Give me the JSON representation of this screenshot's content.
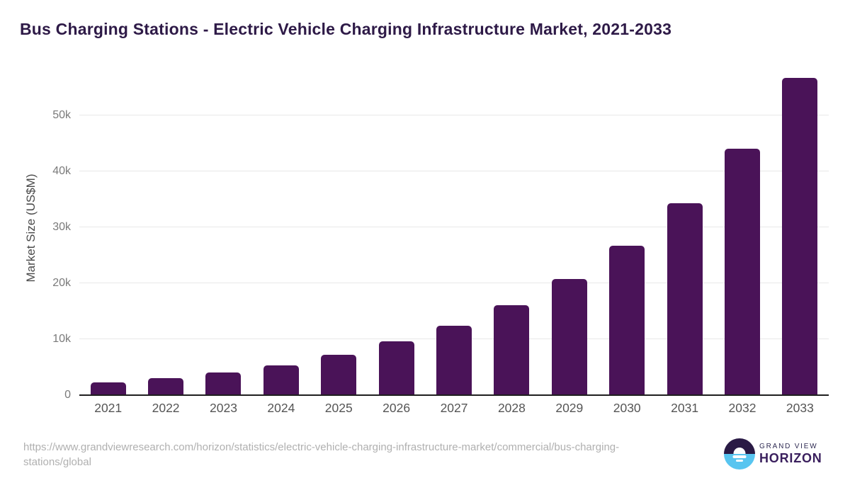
{
  "page": {
    "title": "Bus Charging Stations - Electric Vehicle Charging Infrastructure Market, 2021-2033"
  },
  "chart_data": {
    "type": "bar",
    "title": "Bus Charging Stations - Electric Vehicle Charging Infrastructure Market, 2021-2033",
    "categories": [
      "2021",
      "2022",
      "2023",
      "2024",
      "2025",
      "2026",
      "2027",
      "2028",
      "2029",
      "2030",
      "2031",
      "2032",
      "2033"
    ],
    "values": [
      2250,
      3030,
      4050,
      5320,
      7170,
      9660,
      12420,
      16120,
      20780,
      26750,
      34320,
      44030,
      56680
    ],
    "xlabel": "",
    "ylabel": "Market Size (US$M)",
    "ylim": [
      0,
      58000
    ],
    "yticks": [
      {
        "value": 0,
        "label": "0"
      },
      {
        "value": 10000,
        "label": "10k"
      },
      {
        "value": 20000,
        "label": "20k"
      },
      {
        "value": 30000,
        "label": "30k"
      },
      {
        "value": 40000,
        "label": "40k"
      },
      {
        "value": 50000,
        "label": "50k"
      }
    ],
    "grid": true,
    "legend_position": "none",
    "bar_color": "#4a1358"
  },
  "colors": {
    "background": "#ffffff",
    "title": "#2e1a47",
    "bar": "#4a1358",
    "gridline": "#e8e8e8",
    "axis_line": "#1f1f1f",
    "y_tick_label": "#7a7a7a",
    "x_tick_label": "#555555",
    "y_axis_title": "#4a4a4a",
    "source_text": "#b0b0b0",
    "logo_dark": "#2a1a45",
    "logo_blue": "#58c5f0",
    "logo_grandview_text": "#2e2a52",
    "logo_horizon_text": "#3a1f5d"
  },
  "footer": {
    "source_url": "https://www.grandviewresearch.com/horizon/statistics/electric-vehicle-charging-infrastructure-market/commercial/bus-charging-stations/global",
    "logo": {
      "line1": "GRAND VIEW",
      "line2": "HORIZON"
    }
  }
}
